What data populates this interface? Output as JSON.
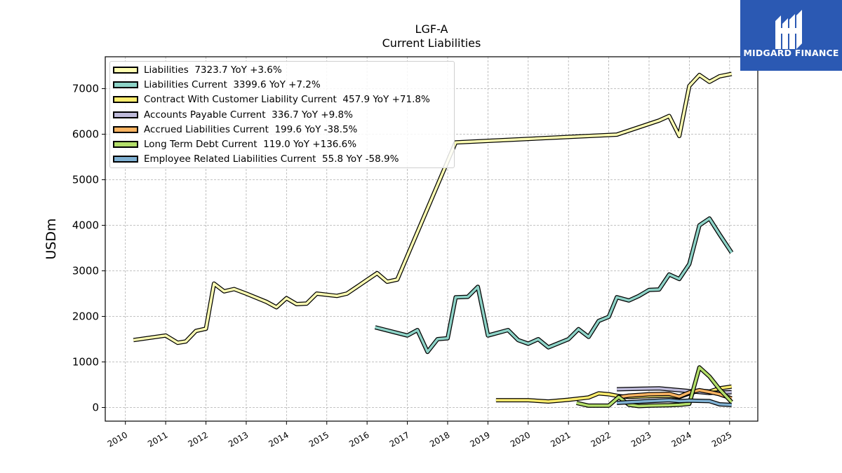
{
  "header": {
    "ticker": "LGF-A",
    "subtitle": "Current  Liabilities"
  },
  "logo": {
    "text": "MIDGARD FINANCE",
    "bg_color": "#2b59b3"
  },
  "chart_data": {
    "type": "line",
    "title": "LGF-A",
    "subtitle": "Current  Liabilities",
    "ylabel": "USDm",
    "xlabel": "",
    "xlim": [
      2009.5,
      2025.7
    ],
    "ylim": [
      -300,
      7700
    ],
    "x_ticks": [
      2010,
      2011,
      2012,
      2013,
      2014,
      2015,
      2016,
      2017,
      2018,
      2019,
      2020,
      2021,
      2022,
      2023,
      2024,
      2025
    ],
    "y_ticks": [
      0,
      1000,
      2000,
      3000,
      4000,
      5000,
      6000,
      7000
    ],
    "grid": true,
    "legend_position": "top-left",
    "series": [
      {
        "name": "Liabilities  7323.7 YoY +3.6%",
        "color": "#ffffb3",
        "x": [
          2010.2,
          2011.0,
          2011.3,
          2011.5,
          2011.75,
          2012.0,
          2012.2,
          2012.45,
          2012.7,
          2013.0,
          2013.5,
          2013.75,
          2014.0,
          2014.25,
          2014.5,
          2014.75,
          2015.25,
          2015.5,
          2015.75,
          2016.0,
          2016.25,
          2016.5,
          2016.75,
          2018.2,
          2022.2,
          2023.25,
          2023.5,
          2023.75,
          2024.0,
          2024.25,
          2024.5,
          2024.75,
          2025.05
        ],
        "y": [
          1480,
          1580,
          1420,
          1450,
          1680,
          1730,
          2720,
          2550,
          2600,
          2500,
          2320,
          2200,
          2400,
          2270,
          2280,
          2500,
          2450,
          2500,
          2650,
          2800,
          2950,
          2760,
          2810,
          5820,
          5990,
          6300,
          6400,
          5960,
          7060,
          7300,
          7150,
          7270,
          7323.7
        ]
      },
      {
        "name": "Liabilities Current  3399.6 YoY +7.2%",
        "color": "#8dd3c7",
        "x": [
          2016.2,
          2017.0,
          2017.25,
          2017.5,
          2017.75,
          2018.0,
          2018.2,
          2018.5,
          2018.75,
          2019.0,
          2019.5,
          2019.75,
          2020.0,
          2020.25,
          2020.5,
          2021.0,
          2021.25,
          2021.5,
          2021.75,
          2022.0,
          2022.2,
          2022.5,
          2022.75,
          2023.0,
          2023.25,
          2023.5,
          2023.75,
          2024.0,
          2024.25,
          2024.5,
          2024.75,
          2025.05
        ],
        "y": [
          1760,
          1580,
          1700,
          1220,
          1500,
          1520,
          2420,
          2430,
          2650,
          1580,
          1700,
          1480,
          1400,
          1500,
          1320,
          1500,
          1720,
          1550,
          1900,
          1990,
          2420,
          2350,
          2450,
          2580,
          2590,
          2920,
          2820,
          3150,
          4000,
          4150,
          3800,
          3399.6
        ]
      },
      {
        "name": "Contract With Customer Liability Current  457.9 YoY +71.8%",
        "color": "#ffed6f",
        "x": [
          2019.2,
          2020.0,
          2020.5,
          2021.0,
          2021.5,
          2021.75,
          2022.0,
          2022.25,
          2022.5,
          2023.0,
          2023.5,
          2023.75,
          2024.0,
          2024.25,
          2024.5,
          2024.75,
          2025.05
        ],
        "y": [
          160,
          160,
          130,
          170,
          220,
          310,
          290,
          250,
          230,
          250,
          260,
          230,
          310,
          370,
          350,
          420,
          457.9
        ]
      },
      {
        "name": "Accounts Payable Current  336.7 YoY +9.8%",
        "color": "#bebada",
        "x": [
          2022.2,
          2023.25,
          2024.0,
          2024.5,
          2025.05
        ],
        "y": [
          400,
          420,
          360,
          320,
          336.7
        ]
      },
      {
        "name": "Accrued Liabilities Current  199.6 YoY -38.5%",
        "color": "#fdb462",
        "x": [
          2022.2,
          2022.5,
          2023.0,
          2023.5,
          2023.75,
          2024.0,
          2024.25,
          2024.5,
          2024.75,
          2025.05
        ],
        "y": [
          220,
          260,
          290,
          300,
          240,
          330,
          380,
          340,
          290,
          199.6
        ]
      },
      {
        "name": "Long Term Debt Current  119.0 YoY +136.6%",
        "color": "#b3de69",
        "x": [
          2021.2,
          2021.5,
          2022.0,
          2022.25,
          2022.5,
          2022.75,
          2023.0,
          2023.5,
          2023.75,
          2024.0,
          2024.25,
          2024.5,
          2024.75,
          2025.05
        ],
        "y": [
          100,
          40,
          40,
          230,
          60,
          30,
          40,
          50,
          60,
          80,
          880,
          680,
          400,
          119.0
        ]
      },
      {
        "name": "Employee Related Liabilities Current  55.8 YoY -58.9%",
        "color": "#80b1d3",
        "x": [
          2022.2,
          2023.0,
          2023.5,
          2023.75,
          2024.0,
          2024.5,
          2024.75,
          2025.05
        ],
        "y": [
          100,
          140,
          160,
          140,
          150,
          140,
          70,
          55.8
        ]
      }
    ]
  }
}
